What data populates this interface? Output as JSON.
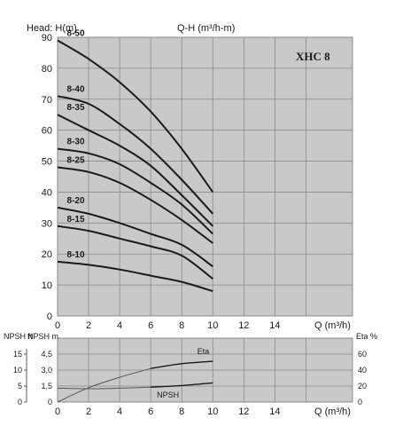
{
  "chart_data": [
    {
      "type": "line",
      "title": "Q-H (m³/h-m)",
      "model": "XHC 8",
      "ylabel": "Head: H(m)",
      "xlabel": "Q (m³/h)",
      "xlim": [
        0,
        19
      ],
      "ylim": [
        0,
        90
      ],
      "xticks": [
        "0",
        "2",
        "4",
        "6",
        "8",
        "10",
        "12",
        "14"
      ],
      "yticks": [
        "0",
        "10",
        "20",
        "30",
        "40",
        "50",
        "60",
        "70",
        "80",
        "90"
      ],
      "grid": true,
      "series": [
        {
          "name": "8-50",
          "x": [
            0,
            2,
            4,
            6,
            8,
            10
          ],
          "y": [
            89,
            83,
            75.5,
            66,
            54,
            40
          ]
        },
        {
          "name": "8-40",
          "x": [
            0,
            2,
            4,
            6,
            8,
            10
          ],
          "y": [
            71,
            68.5,
            62,
            54,
            44,
            33
          ]
        },
        {
          "name": "8-35",
          "x": [
            0,
            2,
            4,
            6,
            8,
            10
          ],
          "y": [
            65,
            60,
            55,
            48.5,
            39,
            29
          ]
        },
        {
          "name": "8-30",
          "x": [
            0,
            2,
            4,
            6,
            8,
            10
          ],
          "y": [
            54,
            52.5,
            49,
            43,
            36,
            26.5
          ]
        },
        {
          "name": "8-25",
          "x": [
            0,
            2,
            4,
            6,
            8,
            10
          ],
          "y": [
            48,
            46.5,
            43,
            37.5,
            31,
            23.5
          ]
        },
        {
          "name": "8-20",
          "x": [
            0,
            2,
            4,
            6,
            8,
            10
          ],
          "y": [
            35,
            33,
            30,
            26.5,
            23,
            16
          ]
        },
        {
          "name": "8-15",
          "x": [
            0,
            2,
            4,
            6,
            8,
            10
          ],
          "y": [
            29,
            27.5,
            25,
            22.5,
            19.5,
            12
          ]
        },
        {
          "name": "8-10",
          "x": [
            0,
            2,
            4,
            6,
            8,
            10
          ],
          "y": [
            17.5,
            16.5,
            15,
            13,
            11,
            8
          ]
        }
      ]
    },
    {
      "type": "line",
      "xlabel": "Q (m³/h)",
      "xlim": [
        0,
        19
      ],
      "xticks": [
        "0",
        "2",
        "4",
        "6",
        "8",
        "10",
        "12",
        "14"
      ],
      "left_axis_labels": [
        "NPSH ft",
        "NPSH m"
      ],
      "npsh_ft_ticks": [
        "0",
        "5",
        "10",
        "15"
      ],
      "npsh_m_ticks": [
        "0",
        "1,5",
        "3,0",
        "4,5"
      ],
      "right_axis_label": "Eta %",
      "eta_ticks": [
        "0",
        "20",
        "40",
        "60"
      ],
      "grid": true,
      "series": [
        {
          "name": "Eta",
          "axis": "eta",
          "x": [
            0,
            2,
            4,
            6,
            8,
            10
          ],
          "y": [
            0,
            18,
            31,
            42,
            48,
            51
          ]
        },
        {
          "name": "NPSH",
          "axis": "npsh_m",
          "x": [
            0,
            2,
            4,
            6,
            8,
            10
          ],
          "y": [
            1.3,
            1.25,
            1.3,
            1.4,
            1.55,
            1.8
          ]
        }
      ]
    }
  ]
}
